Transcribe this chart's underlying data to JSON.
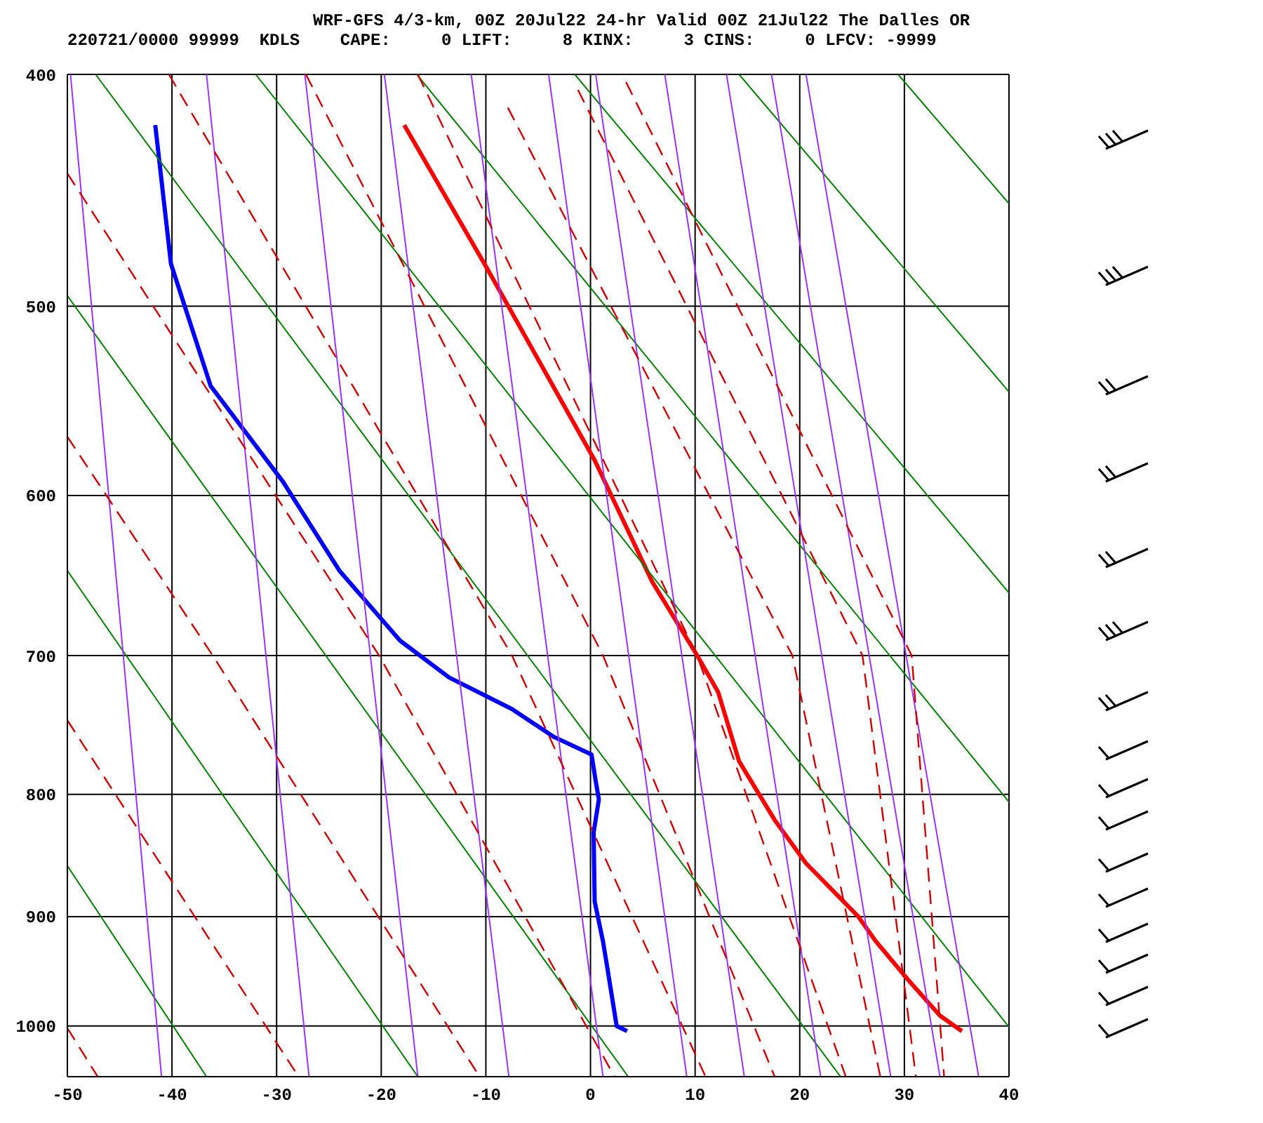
{
  "chart_data": {
    "type": "line",
    "title": "WRF-GFS 4/3-km, 00Z 20Jul22 24-hr Valid 00Z 21Jul22 The Dalles OR",
    "subtitle": "220721/0000 99999  KDLS    CAPE:     0 LIFT:     8 KINX:     3 CINS:     0 LFCV: -9999",
    "xlim": [
      -50,
      40
    ],
    "xticks": [
      -50,
      -40,
      -30,
      -20,
      -10,
      0,
      10,
      20,
      30,
      40
    ],
    "ylim": [
      1050,
      400
    ],
    "yticks": [
      400,
      500,
      600,
      700,
      800,
      900,
      1000
    ],
    "log": true,
    "grid": true,
    "marker": "none",
    "series": [
      {
        "color": "#ff0000",
        "x": [
          -17.8,
          -9.9,
          0.4,
          5.9,
          10.2,
          12.2,
          14.2,
          17.6,
          20.6,
          25.6,
          27.3,
          30.4,
          33.4,
          35.5
        ],
        "values": [
          420,
          482,
          580,
          652,
          700,
          725,
          775,
          820,
          855,
          900,
          922,
          957,
          990,
          1005
        ]
      },
      {
        "color": "#0000ff",
        "x": [
          -41.6,
          -40.1,
          -36.3,
          -29.4,
          -24,
          -18.2,
          -13.5,
          -7.5,
          -3.5,
          0.1,
          0.5,
          0.8,
          0.3,
          0.4,
          1.2,
          1.6,
          2.5,
          3.5
        ],
        "values": [
          420,
          480,
          540,
          592,
          645,
          690,
          715,
          737,
          757,
          770,
          790,
          804,
          830,
          887,
          922,
          945,
          1000,
          1005
        ]
      },
      {
        "color": "#008000",
        "x": [
          29.4,
          40
        ],
        "values": [
          400,
          453
        ]
      },
      {
        "color": "#008000",
        "x": [
          14.2,
          40
        ],
        "values": [
          400,
          543
        ]
      },
      {
        "color": "#008000",
        "x": [
          -1.5,
          40
        ],
        "values": [
          400,
          659
        ]
      },
      {
        "color": "#008000",
        "x": [
          -16.6,
          40
        ],
        "values": [
          400,
          806
        ]
      },
      {
        "color": "#008000",
        "x": [
          -32,
          40
        ],
        "values": [
          400,
          1001
        ]
      },
      {
        "color": "#008000",
        "x": [
          -47.3,
          23.9
        ],
        "values": [
          400,
          1050
        ]
      },
      {
        "color": "#008000",
        "x": [
          -50,
          3.6
        ],
        "values": [
          495,
          1050
        ]
      },
      {
        "color": "#008000",
        "x": [
          -50,
          -16.5
        ],
        "values": [
          645,
          1050
        ]
      },
      {
        "color": "#008000",
        "x": [
          -50,
          -36.7
        ],
        "values": [
          857,
          1050
        ]
      },
      {
        "color": "#9933ff",
        "x": [
          -49.7,
          -41
        ],
        "values": [
          400,
          1050
        ]
      },
      {
        "color": "#9933ff",
        "x": [
          -36.7,
          -26.9
        ],
        "values": [
          400,
          1050
        ]
      },
      {
        "color": "#9933ff",
        "x": [
          -27.3,
          -16.5
        ],
        "values": [
          400,
          1050
        ]
      },
      {
        "color": "#9933ff",
        "x": [
          -19.7,
          -7.8
        ],
        "values": [
          400,
          1050
        ]
      },
      {
        "color": "#9933ff",
        "x": [
          -11.4,
          1.2
        ],
        "values": [
          400,
          1050
        ]
      },
      {
        "color": "#9933ff",
        "x": [
          -4,
          9.2
        ],
        "values": [
          400,
          1050
        ]
      },
      {
        "color": "#9933ff",
        "x": [
          0.5,
          14.7
        ],
        "values": [
          400,
          1050
        ]
      },
      {
        "color": "#9933ff",
        "x": [
          7.1,
          22
        ],
        "values": [
          400,
          1050
        ]
      },
      {
        "color": "#9933ff",
        "x": [
          13,
          28.7
        ],
        "values": [
          400,
          1050
        ]
      },
      {
        "color": "#9933ff",
        "x": [
          17.3,
          33.4
        ],
        "values": [
          400,
          1050
        ]
      },
      {
        "color": "#9933ff",
        "x": [
          20.6,
          37.1
        ],
        "values": [
          400,
          1050
        ]
      },
      {
        "color": "#cc0000",
        "line_style": "dashed",
        "x": [
          3.4,
          30.7,
          33.8
        ],
        "values": [
          403,
          700,
          1050
        ]
      },
      {
        "color": "#cc0000",
        "line_style": "dashed",
        "x": [
          -1.2,
          26,
          31.1
        ],
        "values": [
          406,
          700,
          1050
        ]
      },
      {
        "color": "#cc0000",
        "line_style": "dashed",
        "x": [
          -7.9,
          19.3,
          27.7
        ],
        "values": [
          413,
          700,
          1050
        ]
      },
      {
        "color": "#cc0000",
        "line_style": "dashed",
        "x": [
          -16.5,
          10.2,
          24.4
        ],
        "values": [
          400,
          700,
          1050
        ]
      },
      {
        "color": "#cc0000",
        "line_style": "dashed",
        "x": [
          -27.2,
          1.2,
          17.6
        ],
        "values": [
          400,
          700,
          1050
        ]
      },
      {
        "color": "#cc0000",
        "line_style": "dashed",
        "x": [
          -40.3,
          -7.5,
          11
        ],
        "values": [
          400,
          700,
          1050
        ]
      },
      {
        "color": "#cc0000",
        "line_style": "dashed",
        "x": [
          -50,
          -20.2,
          2.3
        ],
        "values": [
          440,
          700,
          1050
        ]
      },
      {
        "color": "#cc0000",
        "line_style": "dashed",
        "x": [
          -50,
          -36.1,
          -10.6
        ],
        "values": [
          567,
          700,
          1050
        ]
      },
      {
        "color": "#cc0000",
        "line_style": "dashed",
        "x": [
          -50,
          -27.9
        ],
        "values": [
          745,
          1050
        ]
      },
      {
        "color": "#cc0000",
        "line_style": "dashed",
        "x": [
          -50,
          -47.1
        ],
        "values": [
          1002,
          1050
        ]
      }
    ]
  }
}
